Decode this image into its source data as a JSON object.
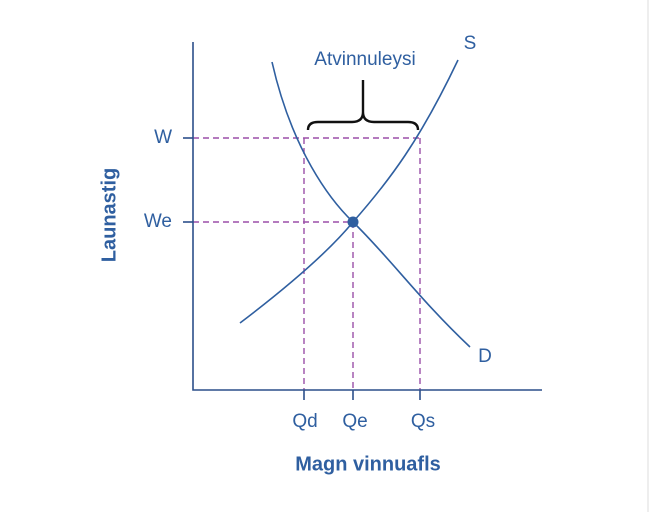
{
  "diagram": {
    "y_axis_label": "Launastig",
    "x_axis_label": "Magn vinnuafls",
    "y_ticks": [
      "W",
      "We"
    ],
    "x_ticks": [
      "Qd",
      "Qe",
      "Qs"
    ],
    "curves": {
      "supply": "S",
      "demand": "D"
    },
    "annotation": "Atvinnuleysi"
  }
}
